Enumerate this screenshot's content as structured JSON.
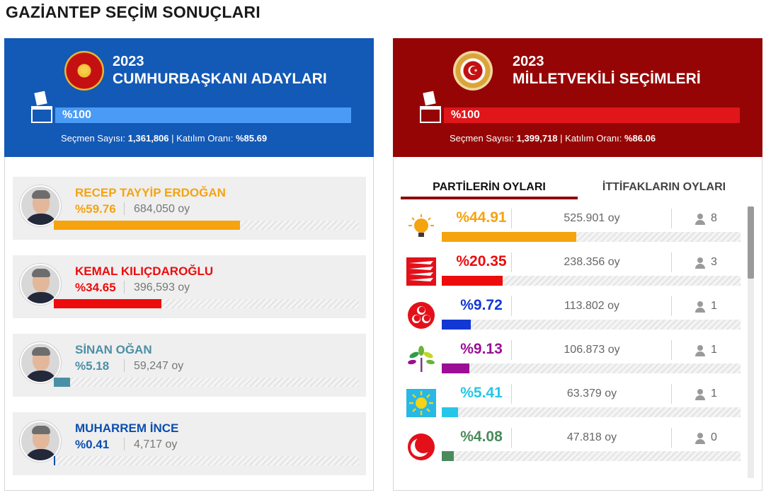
{
  "page_title": "GAZİANTEP SEÇİM SONUÇLARI",
  "presidential": {
    "year": "2023",
    "title": "CUMHURBAŞKANI ADAYLARI",
    "progress_label": "%100",
    "progress_value": 100,
    "voters_label": "Seçmen Sayısı:",
    "voters_value": "1,361,806",
    "separator": "|",
    "turnout_label": "Katılım Oranı:",
    "turnout_value": "%85.69",
    "candidates": [
      {
        "name": "RECEP TAYYİP ERDOĞAN",
        "percent": "%59.76",
        "votes": "684,050 oy",
        "share": 59.76,
        "color": "#f5a30f"
      },
      {
        "name": "KEMAL KILIÇDAROĞLU",
        "percent": "%34.65",
        "votes": "396,593 oy",
        "share": 34.65,
        "color": "#ec0c0c"
      },
      {
        "name": "SİNAN OĞAN",
        "percent": "%5.18",
        "votes": "59,247 oy",
        "share": 5.18,
        "color": "#4b8fa6"
      },
      {
        "name": "MUHARREM İNCE",
        "percent": "%0.41",
        "votes": "4,717 oy",
        "share": 0.41,
        "color": "#0a4fae"
      }
    ]
  },
  "parliamentary": {
    "year": "2023",
    "title": "MİLLETVEKİLİ SEÇİMLERİ",
    "progress_label": "%100",
    "progress_value": 100,
    "voters_label": "Seçmen Sayısı:",
    "voters_value": "1,399,718",
    "separator": "|",
    "turnout_label": "Katılım Oranı:",
    "turnout_value": "%86.06",
    "tabs": [
      {
        "label": "PARTİLERİN OYLARI",
        "active": true
      },
      {
        "label": "İTTİFAKLARIN OYLARI",
        "active": false
      }
    ],
    "parties": [
      {
        "percent": "%44.91",
        "votes": "525.901 oy",
        "seats": "8",
        "share": 44.91,
        "color": "#f5a30f",
        "logo": "akp-bulb-icon"
      },
      {
        "percent": "%20.35",
        "votes": "238.356 oy",
        "seats": "3",
        "share": 20.35,
        "color": "#ec0c0c",
        "logo": "chp-arrows-icon"
      },
      {
        "percent": "%9.72",
        "votes": "113.802 oy",
        "seats": "1",
        "share": 9.72,
        "color": "#1237d4",
        "logo": "mhp-crescents-icon"
      },
      {
        "percent": "%9.13",
        "votes": "106.873 oy",
        "seats": "1",
        "share": 9.13,
        "color": "#9a0f96",
        "logo": "yesil-sol-tree-icon"
      },
      {
        "percent": "%5.41",
        "votes": "63.379 oy",
        "seats": "1",
        "share": 5.41,
        "color": "#27c6e8",
        "logo": "iyi-sun-icon"
      },
      {
        "percent": "%4.08",
        "votes": "47.818 oy",
        "seats": "0",
        "share": 4.08,
        "color": "#4a8a5c",
        "logo": "yrp-crescent-icon"
      }
    ]
  }
}
